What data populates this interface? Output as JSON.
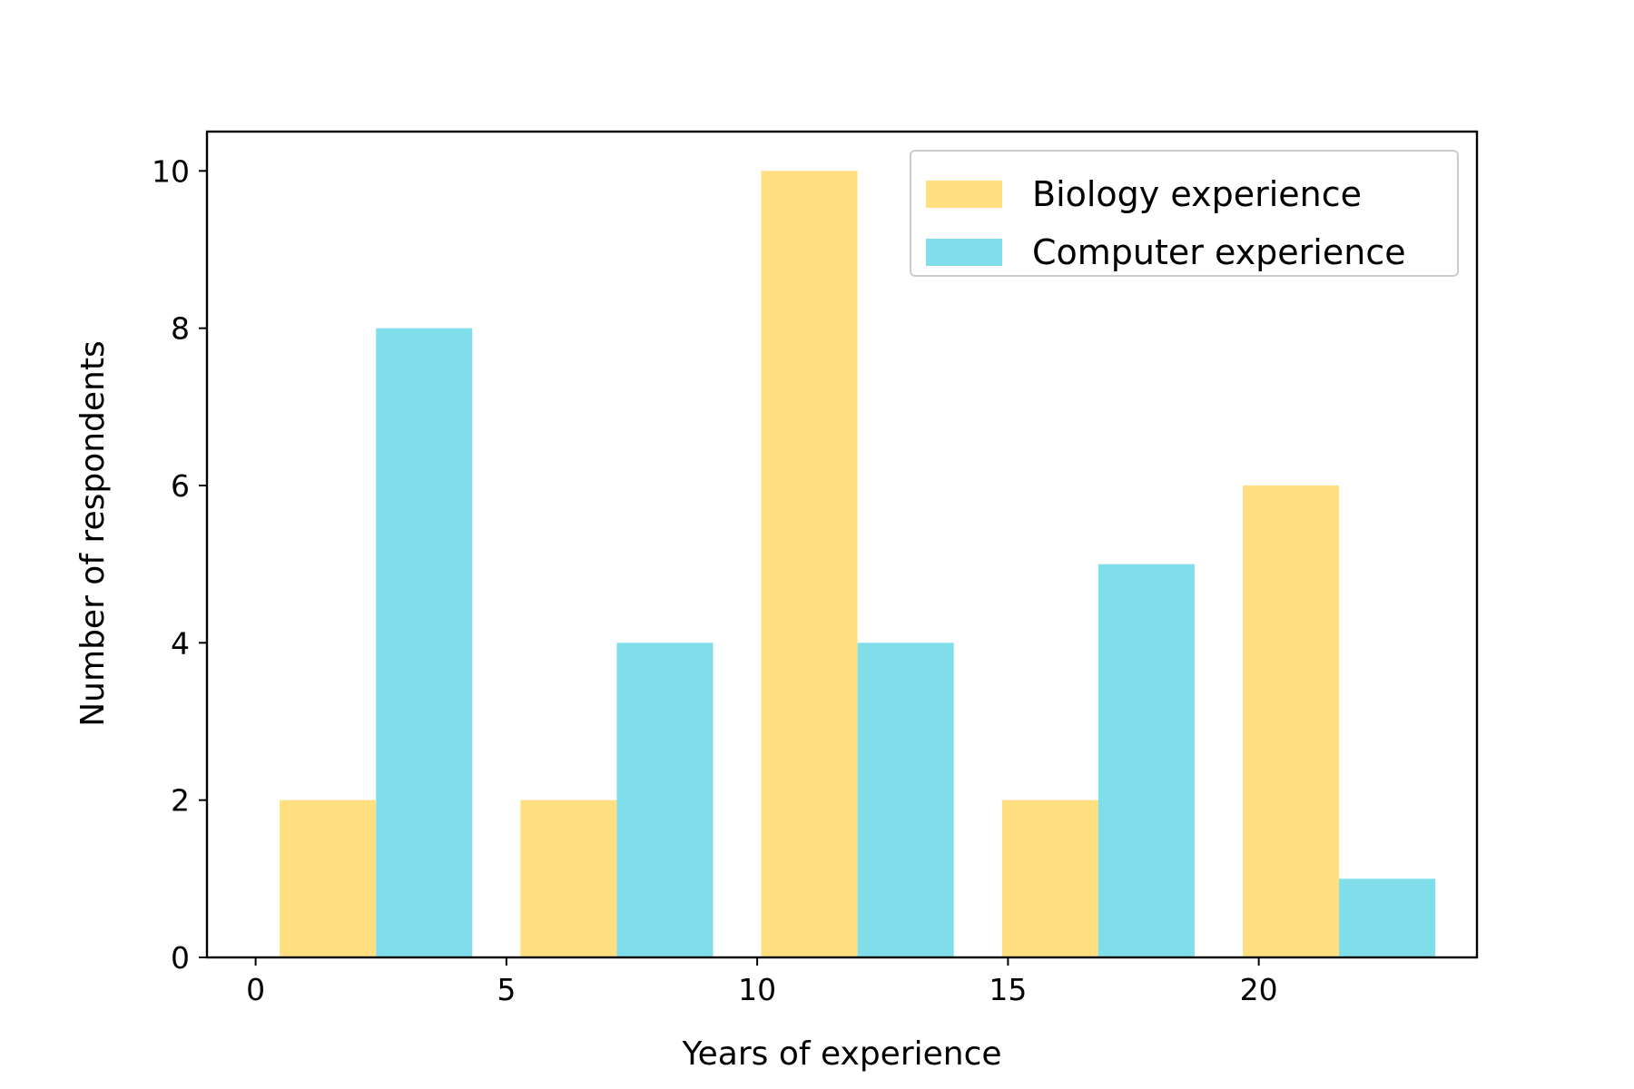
{
  "chart_data": {
    "type": "bar",
    "xlabel": "Years of experience",
    "ylabel": "Number of respondents",
    "xlim": [
      -0.97,
      24.35
    ],
    "ylim": [
      0,
      10.5
    ],
    "xticks": [
      0,
      5,
      10,
      15,
      20
    ],
    "yticks": [
      0,
      2,
      4,
      6,
      8,
      10
    ],
    "bar_width": 1.92,
    "grid": false,
    "legend_position": "top-right",
    "series": [
      {
        "name": "Biology experience",
        "color": "#FFDF80",
        "x": [
          1.44,
          6.24,
          11.04,
          15.84,
          20.64
        ],
        "values": [
          2,
          2,
          10,
          2,
          6
        ]
      },
      {
        "name": "Computer experience",
        "color": "#80DEEA",
        "x": [
          3.36,
          8.16,
          12.96,
          17.76,
          22.56
        ],
        "values": [
          8,
          4,
          4,
          5,
          1
        ]
      }
    ]
  }
}
